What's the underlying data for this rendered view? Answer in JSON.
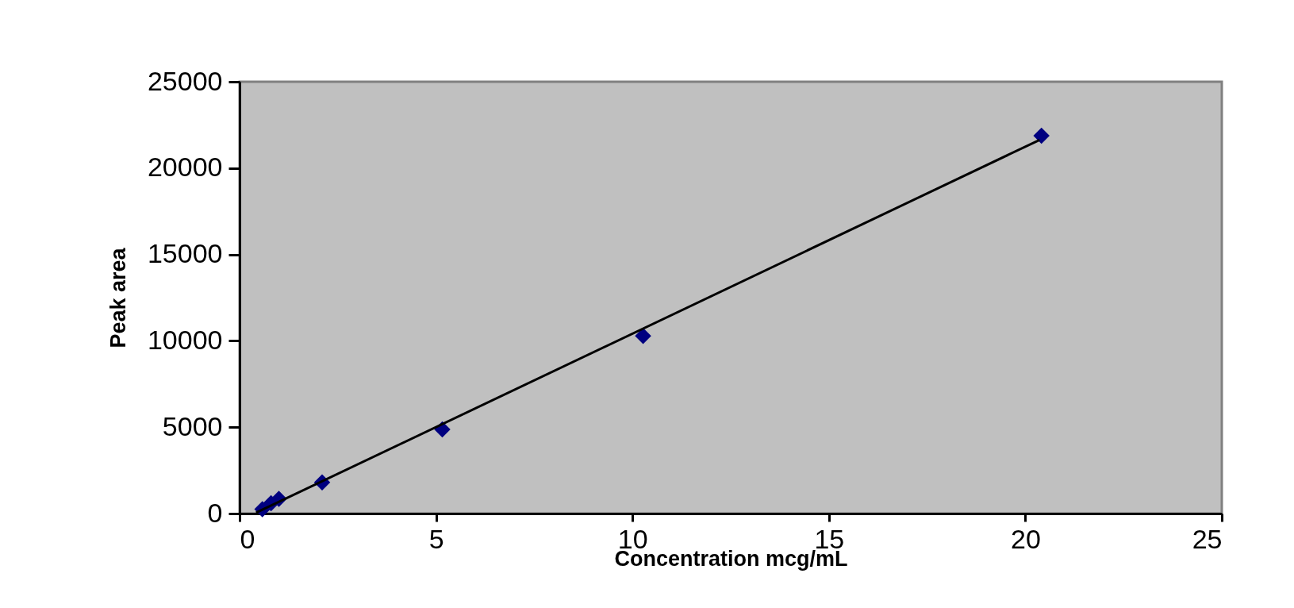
{
  "chart_data": {
    "type": "scatter",
    "xlabel": "Concentration mcg/mL",
    "ylabel": "Peak area",
    "x": [
      0.58,
      0.8,
      1.0,
      2.1,
      5.16,
      10.27,
      20.41
    ],
    "series": [
      {
        "color": "#000080",
        "marker": "diamond",
        "values": [
          250,
          600,
          850,
          1800,
          4870,
          10280,
          21870
        ]
      },
      {
        "type": "line",
        "color": "#000000",
        "marker": "none",
        "line_style": "solid",
        "x": [
          0.42,
          20.36
        ],
        "values": [
          50,
          21630
        ]
      }
    ],
    "xlim": [
      0,
      25
    ],
    "xticks": [
      0,
      5,
      10,
      15,
      20,
      25
    ],
    "ylim": [
      0,
      25000
    ],
    "yticks": [
      0,
      5000,
      10000,
      15000,
      20000,
      25000
    ],
    "grid": false
  }
}
